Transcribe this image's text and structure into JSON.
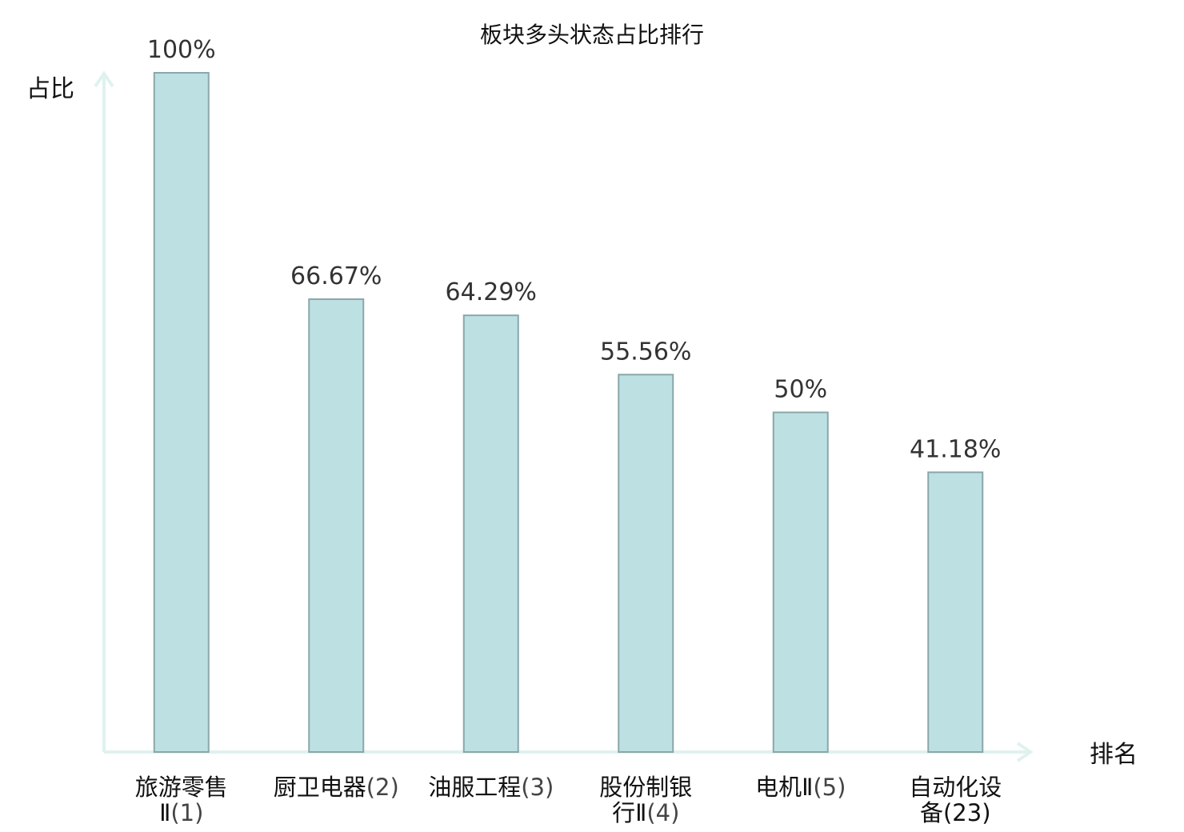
{
  "chart_data": {
    "type": "bar",
    "title": "板块多头状态占比排行",
    "ylabel": "占比",
    "xlabel": "排名",
    "ylim": [
      0,
      100
    ],
    "grid": false,
    "categories": [
      {
        "lines": [
          "旅游零售",
          "Ⅱ"
        ],
        "rank": "(1)",
        "highlight": false
      },
      {
        "lines": [
          "厨卫电器"
        ],
        "rank": "(2)",
        "highlight": false
      },
      {
        "lines": [
          "油服工程"
        ],
        "rank": "(3)",
        "highlight": false
      },
      {
        "lines": [
          "股份制银",
          "行Ⅱ"
        ],
        "rank": "(4)",
        "highlight": false
      },
      {
        "lines": [
          "电机Ⅱ"
        ],
        "rank": "(5)",
        "highlight": false
      },
      {
        "lines": [
          "自动化设",
          "备"
        ],
        "rank": "(23)",
        "highlight": true
      }
    ],
    "values": [
      100,
      66.67,
      64.29,
      55.56,
      50,
      41.18
    ],
    "value_labels": [
      "100%",
      "66.67%",
      "64.29%",
      "55.56%",
      "50%",
      "41.18%"
    ]
  },
  "colors": {
    "bar_fill": "#bde0e2",
    "bar_stroke": "#8aa7aa",
    "axis": "#e0f2ef",
    "highlight": "#e02020"
  }
}
